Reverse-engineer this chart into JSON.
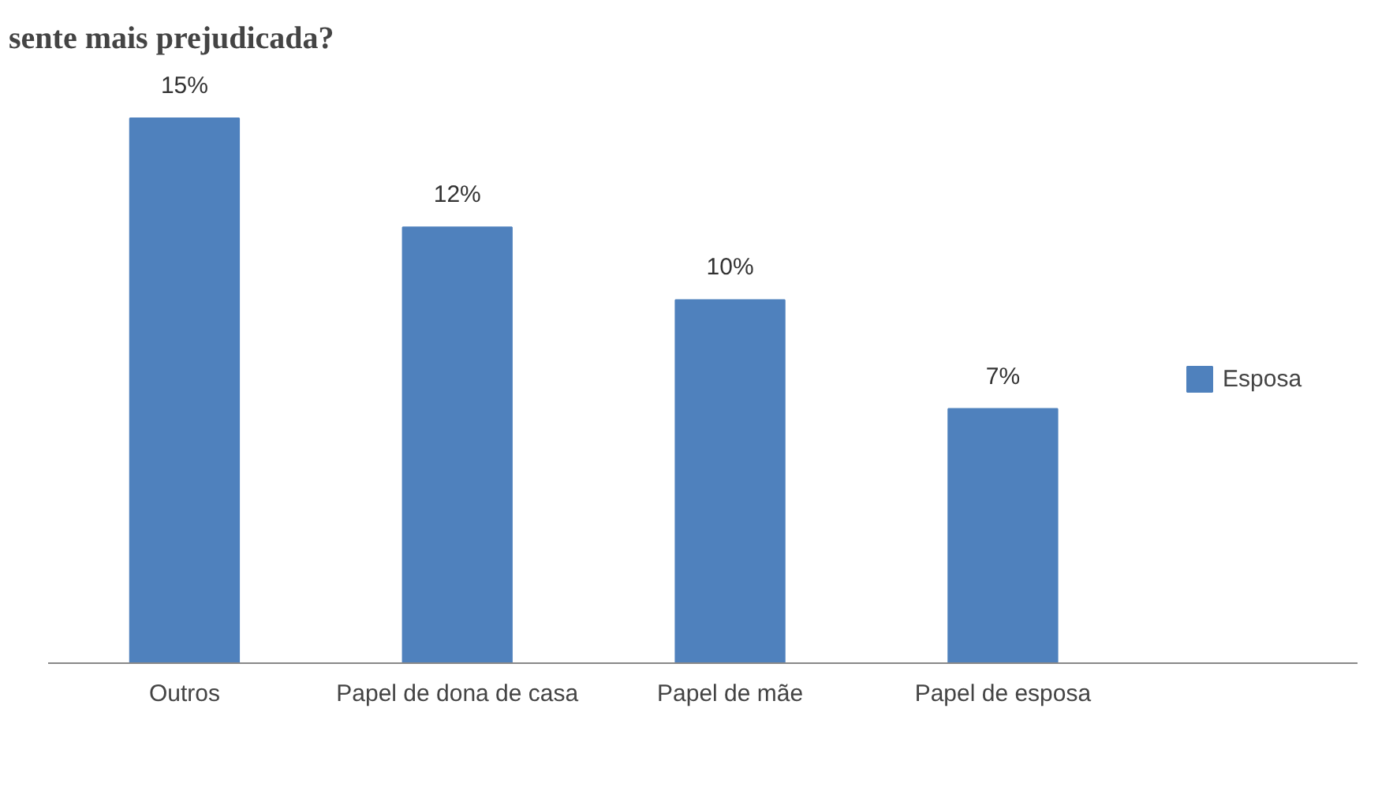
{
  "chart_data": {
    "type": "bar",
    "title": "sente mais prejudicada?",
    "categories": [
      "Outros",
      "Papel de dona de casa",
      "Papel de mãe",
      "Papel de esposa"
    ],
    "series": [
      {
        "name": "Esposa",
        "color": "#4f81bd",
        "values": [
          15,
          12,
          10,
          7
        ],
        "value_labels": [
          "15%",
          "12%",
          "10%",
          "7%"
        ]
      }
    ],
    "legend": "right",
    "grid": false
  }
}
